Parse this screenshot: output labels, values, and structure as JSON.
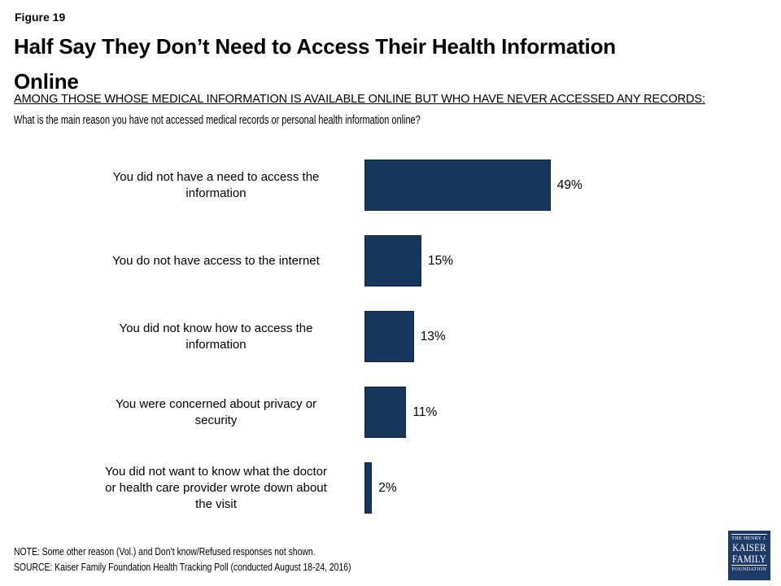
{
  "header": {
    "figure_label": "Figure 19",
    "title": "Half Say They Don’t Need to Access Their Health Information Online",
    "title_lines": [
      "Half Say They Don’t Need to Access Their Health Information",
      "Online"
    ],
    "subtitle": "AMONG THOSE WHOSE MEDICAL INFORMATION IS AVAILABLE ONLINE BUT WHO HAVE NEVER ACCESSED ANY RECORDS:",
    "question": "What is the main reason you have not accessed medical records or personal health information online?"
  },
  "chart_data": {
    "type": "bar",
    "orientation": "horizontal",
    "title": "Half Say They Don’t Need to Access Their Health Information Online",
    "categories": [
      "You did not have a need to access the information",
      "You do not have access to the internet",
      "You did not know how to access the information",
      "You were concerned about privacy or security",
      "You did not want to know what the doctor or health care provider wrote down about the visit"
    ],
    "values": [
      49,
      15,
      13,
      11,
      2
    ],
    "value_labels": [
      "49%",
      "15%",
      "13%",
      "11%",
      "2%"
    ],
    "xlim": [
      0,
      100
    ],
    "axis": "none",
    "grid": false,
    "legend": "none",
    "data_labels": "outside-end",
    "bar_color": "#17375D",
    "bar_border_color": "#0C2441"
  },
  "ui": {
    "row_labels": [
      [
        "You did not have a need to access the",
        "information"
      ],
      [
        "You do not have access to the internet"
      ],
      [
        "You did not know how to access the",
        "information"
      ],
      [
        "You were concerned about privacy or",
        "security"
      ],
      [
        "You did not want to know what the doctor",
        "or health care provider wrote down about",
        "the visit"
      ]
    ]
  },
  "footer": {
    "note": "NOTE: Some other reason (Vol.) and Don’t know/Refused responses not shown.",
    "source": "SOURCE: Kaiser Family Foundation Health Tracking Poll (conducted August 18-24, 2016)"
  },
  "logo": {
    "line1": "THE HENRY J.",
    "line2": "KAISER",
    "line3": "FAMILY",
    "line4": "FOUNDATION",
    "bg_color": "#1E3A69"
  }
}
